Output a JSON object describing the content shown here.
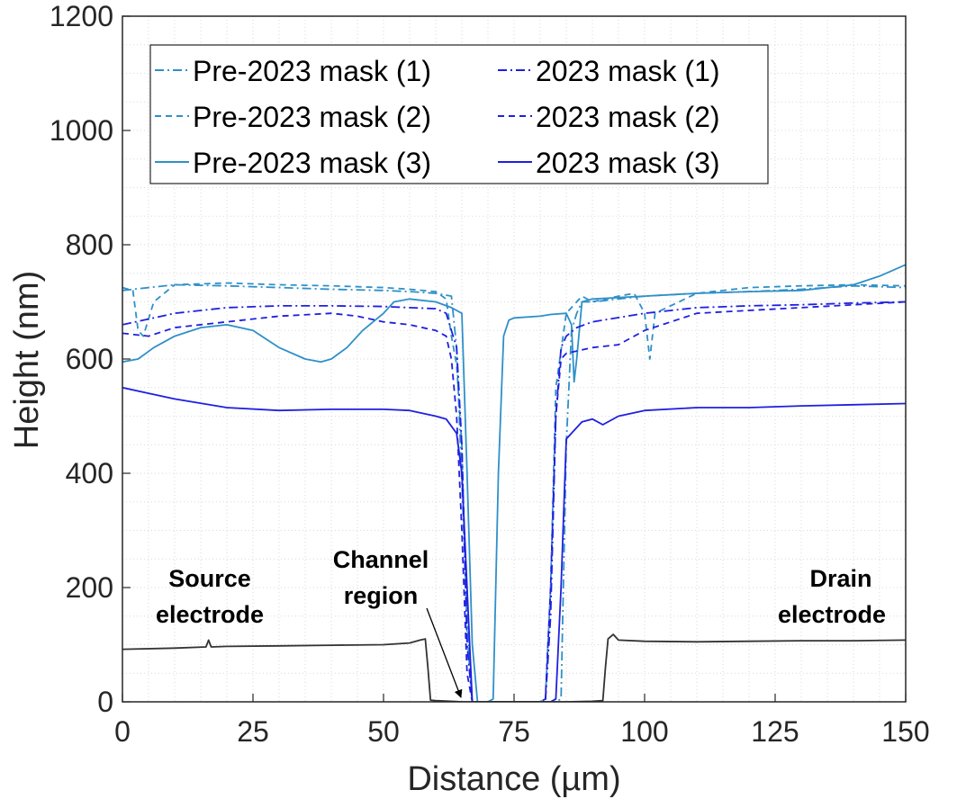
{
  "chart_data": {
    "type": "line",
    "title": "",
    "xlabel": "Distance (µm)",
    "ylabel": "Height (nm)",
    "xlim": [
      0,
      150
    ],
    "ylim": [
      0,
      1200
    ],
    "xticks": [
      0,
      25,
      50,
      75,
      100,
      125,
      150
    ],
    "yticks": [
      0,
      200,
      400,
      600,
      800,
      1000,
      1200
    ],
    "grid": "minor dotted",
    "legend_position": "top-left",
    "colors": {
      "pre_2023": "#2f90c8",
      "mask_2023": "#1f1fe0",
      "electrode": "#333333"
    },
    "series": [
      {
        "name": "Pre-2023 mask (1)",
        "style": "dashdot",
        "color": "#2f90c8",
        "x": [
          0,
          10,
          20,
          30,
          40,
          50,
          55,
          60,
          63,
          64,
          66,
          67,
          70,
          75,
          77,
          78,
          79,
          80,
          81,
          82,
          83,
          84,
          85,
          86,
          87,
          88,
          90,
          100,
          110,
          120,
          130,
          140,
          150
        ],
        "y": [
          720,
          730,
          728,
          725,
          722,
          720,
          718,
          715,
          710,
          620,
          150,
          0,
          0,
          0,
          0,
          0,
          0,
          0,
          0,
          0,
          0,
          5,
          450,
          650,
          680,
          700,
          700,
          710,
          715,
          718,
          722,
          728,
          725
        ]
      },
      {
        "name": "Pre-2023 mask (2)",
        "style": "dashed",
        "color": "#2f90c8",
        "x": [
          0,
          2,
          3,
          4,
          6,
          10,
          20,
          30,
          40,
          50,
          55,
          60,
          62,
          63,
          64,
          65,
          66,
          67,
          70,
          75,
          77,
          78,
          79,
          80,
          81,
          82,
          83,
          85,
          88,
          90,
          95,
          98,
          100,
          101,
          102,
          110,
          120,
          130,
          140,
          150
        ],
        "y": [
          725,
          720,
          650,
          640,
          700,
          730,
          733,
          730,
          728,
          725,
          722,
          718,
          705,
          640,
          590,
          450,
          120,
          0,
          0,
          0,
          0,
          0,
          0,
          0,
          5,
          200,
          550,
          680,
          710,
          700,
          710,
          715,
          680,
          600,
          680,
          715,
          725,
          728,
          730,
          728
        ]
      },
      {
        "name": "Pre-2023 mask (3)",
        "style": "solid",
        "color": "#2f90c8",
        "x": [
          0,
          3,
          6,
          10,
          15,
          20,
          25,
          30,
          35,
          38,
          40,
          43,
          46,
          50,
          52,
          55,
          60,
          63,
          65,
          66,
          67,
          68,
          69,
          70,
          71,
          72,
          73,
          74,
          75,
          80,
          82,
          85,
          86,
          86.5,
          87,
          88,
          90,
          100,
          110,
          120,
          130,
          140,
          145,
          150
        ],
        "y": [
          595,
          600,
          620,
          640,
          655,
          660,
          650,
          620,
          600,
          595,
          600,
          620,
          650,
          680,
          700,
          705,
          700,
          690,
          680,
          400,
          100,
          0,
          0,
          0,
          5,
          400,
          640,
          668,
          672,
          675,
          678,
          680,
          660,
          560,
          600,
          700,
          705,
          710,
          715,
          718,
          720,
          730,
          745,
          765
        ]
      },
      {
        "name": "2023 mask (1)",
        "style": "dashdot",
        "color": "#1f1fe0",
        "x": [
          0,
          10,
          20,
          30,
          40,
          50,
          55,
          60,
          62,
          64,
          65,
          66,
          67,
          70,
          75,
          79,
          80,
          81,
          82,
          83,
          84,
          85,
          87,
          90,
          100,
          110,
          120,
          130,
          140,
          150
        ],
        "y": [
          660,
          680,
          690,
          693,
          693,
          692,
          690,
          688,
          680,
          620,
          450,
          100,
          0,
          0,
          0,
          0,
          0,
          0,
          150,
          500,
          620,
          640,
          655,
          665,
          680,
          690,
          693,
          695,
          698,
          700
        ]
      },
      {
        "name": "2023 mask (2)",
        "style": "dashed",
        "color": "#1f1fe0",
        "x": [
          0,
          5,
          10,
          20,
          30,
          40,
          45,
          50,
          55,
          60,
          62,
          63,
          64,
          65,
          66,
          67,
          70,
          75,
          80,
          81,
          82,
          83,
          84,
          85,
          90,
          95,
          100,
          110,
          120,
          130,
          140,
          150
        ],
        "y": [
          645,
          640,
          655,
          665,
          675,
          680,
          675,
          665,
          660,
          650,
          640,
          600,
          500,
          300,
          50,
          0,
          0,
          0,
          0,
          5,
          200,
          500,
          600,
          610,
          620,
          625,
          650,
          680,
          685,
          690,
          695,
          700
        ]
      },
      {
        "name": "2023 mask (3)",
        "style": "solid",
        "color": "#1f1fe0",
        "x": [
          0,
          5,
          10,
          20,
          30,
          40,
          50,
          55,
          60,
          62,
          64,
          65,
          66,
          67,
          70,
          75,
          80,
          81,
          82,
          83,
          84,
          85,
          88,
          90,
          92,
          95,
          100,
          110,
          120,
          130,
          140,
          150
        ],
        "y": [
          550,
          540,
          530,
          515,
          510,
          512,
          512,
          510,
          500,
          495,
          470,
          400,
          200,
          0,
          0,
          0,
          0,
          0,
          0,
          5,
          200,
          460,
          490,
          495,
          485,
          500,
          510,
          515,
          515,
          518,
          520,
          522
        ]
      },
      {
        "name": "",
        "style": "solid",
        "color": "#333333",
        "x": [
          0,
          10,
          16,
          16.5,
          17,
          20,
          30,
          40,
          50,
          55,
          57,
          58,
          58.5,
          59,
          60,
          65,
          70,
          75,
          80,
          85,
          90,
          92,
          92.5,
          93,
          94,
          95,
          100,
          110,
          120,
          130,
          140,
          150
        ],
        "y": [
          92,
          94,
          96,
          108,
          96,
          97,
          98,
          99,
          100,
          103,
          108,
          110,
          60,
          3,
          2,
          0,
          0,
          0,
          0,
          0,
          1,
          2,
          60,
          110,
          118,
          108,
          106,
          105,
          106,
          107,
          107,
          108
        ]
      }
    ],
    "annotations": {
      "source": [
        "Source",
        "electrode"
      ],
      "channel": [
        "Channel",
        "region"
      ],
      "drain": [
        "Drain",
        "electrode"
      ]
    }
  }
}
